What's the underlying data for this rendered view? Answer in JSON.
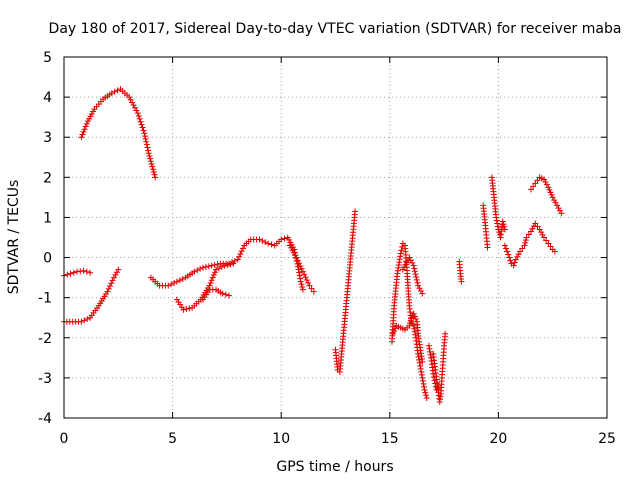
{
  "chart_data": {
    "type": "scatter",
    "title": "Day 180 of 2017, Sidereal Day-to-day VTEC variation (SDTVAR) for receiver maba",
    "xlabel": "GPS time / hours",
    "ylabel": "SDTVAR / TECUs",
    "xlim": [
      0,
      25
    ],
    "ylim": [
      -4,
      5
    ],
    "xticks": [
      0,
      5,
      10,
      15,
      20,
      25
    ],
    "yticks": [
      -4,
      -3,
      -2,
      -1,
      0,
      1,
      2,
      3,
      4,
      5
    ],
    "xtick_labels": [
      "0",
      "5",
      "10",
      "15",
      "20",
      "25"
    ],
    "ytick_labels": [
      "-4",
      "-3",
      "-2",
      "-1",
      "0",
      "1",
      "2",
      "3",
      "4",
      "5"
    ],
    "grid": true,
    "marker": "+",
    "color": "#e00000",
    "segments": [
      {
        "name": "arc-a",
        "points": [
          [
            0.8,
            3.0
          ],
          [
            1.1,
            3.4
          ],
          [
            1.4,
            3.7
          ],
          [
            1.8,
            3.95
          ],
          [
            2.2,
            4.1
          ],
          [
            2.6,
            4.2
          ],
          [
            3.0,
            4.0
          ],
          [
            3.4,
            3.6
          ],
          [
            3.7,
            3.1
          ],
          [
            3.9,
            2.6
          ],
          [
            4.1,
            2.2
          ],
          [
            4.2,
            2.0
          ]
        ]
      },
      {
        "name": "arc-b",
        "points": [
          [
            0.0,
            -0.45
          ],
          [
            0.3,
            -0.4
          ],
          [
            0.6,
            -0.35
          ],
          [
            0.9,
            -0.33
          ],
          [
            1.2,
            -0.38
          ]
        ]
      },
      {
        "name": "arc-c",
        "points": [
          [
            0.0,
            -1.6
          ],
          [
            0.4,
            -1.6
          ],
          [
            0.8,
            -1.6
          ],
          [
            1.2,
            -1.5
          ],
          [
            1.6,
            -1.2
          ],
          [
            2.0,
            -0.85
          ],
          [
            2.3,
            -0.5
          ],
          [
            2.5,
            -0.3
          ]
        ]
      },
      {
        "name": "arc-d",
        "points": [
          [
            4.0,
            -0.5
          ],
          [
            4.4,
            -0.7
          ],
          [
            4.8,
            -0.7
          ],
          [
            5.2,
            -0.6
          ],
          [
            5.6,
            -0.5
          ],
          [
            6.0,
            -0.35
          ],
          [
            6.4,
            -0.25
          ],
          [
            6.8,
            -0.2
          ],
          [
            7.2,
            -0.15
          ],
          [
            7.6,
            -0.15
          ],
          [
            8.0,
            -0.05
          ],
          [
            8.3,
            0.3
          ],
          [
            8.6,
            0.45
          ],
          [
            9.0,
            0.45
          ],
          [
            9.4,
            0.35
          ],
          [
            9.7,
            0.3
          ],
          [
            10.0,
            0.45
          ],
          [
            10.3,
            0.5
          ],
          [
            10.6,
            0.2
          ],
          [
            10.8,
            -0.3
          ],
          [
            10.9,
            -0.6
          ],
          [
            11.0,
            -0.8
          ]
        ]
      },
      {
        "name": "arc-e",
        "points": [
          [
            5.2,
            -1.05
          ],
          [
            5.5,
            -1.3
          ],
          [
            5.9,
            -1.25
          ],
          [
            6.3,
            -1.05
          ],
          [
            6.7,
            -0.7
          ],
          [
            7.0,
            -0.3
          ],
          [
            7.4,
            -0.2
          ],
          [
            7.8,
            -0.15
          ]
        ]
      },
      {
        "name": "arc-f",
        "points": [
          [
            6.4,
            -1.05
          ],
          [
            6.7,
            -0.8
          ],
          [
            7.0,
            -0.8
          ],
          [
            7.3,
            -0.9
          ],
          [
            7.6,
            -0.95
          ]
        ]
      },
      {
        "name": "arc-g",
        "points": [
          [
            10.4,
            0.3
          ],
          [
            10.7,
            0.0
          ],
          [
            11.0,
            -0.35
          ],
          [
            11.3,
            -0.7
          ],
          [
            11.5,
            -0.85
          ]
        ]
      },
      {
        "name": "arc-h",
        "points": [
          [
            12.5,
            -2.3
          ],
          [
            12.6,
            -2.8
          ],
          [
            12.7,
            -2.85
          ],
          [
            13.4,
            1.15
          ]
        ]
      },
      {
        "name": "arc-i",
        "points": [
          [
            15.1,
            -2.1
          ],
          [
            15.2,
            -1.2
          ],
          [
            15.35,
            -0.4
          ],
          [
            15.5,
            0.1
          ],
          [
            15.6,
            0.35
          ],
          [
            15.7,
            0.3
          ],
          [
            15.8,
            -0.4
          ],
          [
            15.9,
            -1.2
          ],
          [
            16.0,
            -1.6
          ],
          [
            16.1,
            -1.7
          ],
          [
            16.2,
            -2.0
          ],
          [
            16.3,
            -2.4
          ],
          [
            16.4,
            -2.7
          ],
          [
            16.5,
            -3.0
          ],
          [
            16.6,
            -3.3
          ],
          [
            16.7,
            -3.5
          ]
        ]
      },
      {
        "name": "arc-j",
        "points": [
          [
            15.15,
            -1.9
          ],
          [
            15.3,
            -1.7
          ],
          [
            15.5,
            -1.75
          ],
          [
            15.7,
            -1.8
          ],
          [
            15.9,
            -1.7
          ],
          [
            16.0,
            -1.5
          ],
          [
            16.1,
            -1.4
          ],
          [
            16.25,
            -1.6
          ],
          [
            16.35,
            -2.1
          ],
          [
            16.5,
            -2.6
          ]
        ]
      },
      {
        "name": "arc-k",
        "points": [
          [
            15.6,
            -0.3
          ],
          [
            15.9,
            0.0
          ],
          [
            16.1,
            -0.2
          ],
          [
            16.3,
            -0.7
          ],
          [
            16.5,
            -0.9
          ]
        ]
      },
      {
        "name": "arc-l",
        "points": [
          [
            17.0,
            -2.4
          ],
          [
            17.1,
            -2.8
          ],
          [
            17.2,
            -3.2
          ],
          [
            17.3,
            -3.6
          ],
          [
            17.35,
            -3.4
          ],
          [
            17.4,
            -3.0
          ],
          [
            17.45,
            -2.6
          ],
          [
            17.5,
            -2.2
          ],
          [
            17.55,
            -1.9
          ]
        ]
      },
      {
        "name": "arc-m",
        "points": [
          [
            16.8,
            -2.2
          ],
          [
            16.9,
            -2.5
          ],
          [
            17.0,
            -2.9
          ],
          [
            17.15,
            -3.3
          ],
          [
            17.25,
            -3.2
          ]
        ]
      },
      {
        "name": "arc-n",
        "points": [
          [
            18.2,
            -0.1
          ],
          [
            18.25,
            -0.4
          ],
          [
            18.3,
            -0.6
          ]
        ]
      },
      {
        "name": "arc-o",
        "points": [
          [
            19.3,
            1.3
          ],
          [
            19.4,
            0.8
          ],
          [
            19.5,
            0.25
          ]
        ]
      },
      {
        "name": "arc-p",
        "points": [
          [
            19.7,
            2.0
          ],
          [
            19.8,
            1.5
          ],
          [
            19.9,
            1.0
          ],
          [
            20.0,
            0.7
          ],
          [
            20.1,
            0.5
          ],
          [
            20.2,
            0.9
          ],
          [
            20.3,
            0.7
          ]
        ]
      },
      {
        "name": "arc-q",
        "points": [
          [
            20.3,
            0.3
          ],
          [
            20.5,
            0.0
          ],
          [
            20.6,
            -0.15
          ],
          [
            20.7,
            -0.2
          ],
          [
            20.8,
            -0.05
          ],
          [
            21.0,
            0.15
          ],
          [
            21.2,
            0.3
          ],
          [
            21.3,
            0.5
          ],
          [
            21.5,
            0.65
          ],
          [
            21.7,
            0.85
          ],
          [
            21.9,
            0.7
          ],
          [
            22.1,
            0.5
          ],
          [
            22.3,
            0.35
          ],
          [
            22.5,
            0.2
          ],
          [
            22.6,
            0.15
          ]
        ]
      },
      {
        "name": "arc-r",
        "points": [
          [
            21.5,
            1.7
          ],
          [
            21.7,
            1.85
          ],
          [
            21.9,
            2.0
          ],
          [
            22.1,
            1.95
          ],
          [
            22.3,
            1.75
          ],
          [
            22.5,
            1.5
          ],
          [
            22.7,
            1.3
          ],
          [
            22.9,
            1.1
          ]
        ]
      }
    ]
  }
}
